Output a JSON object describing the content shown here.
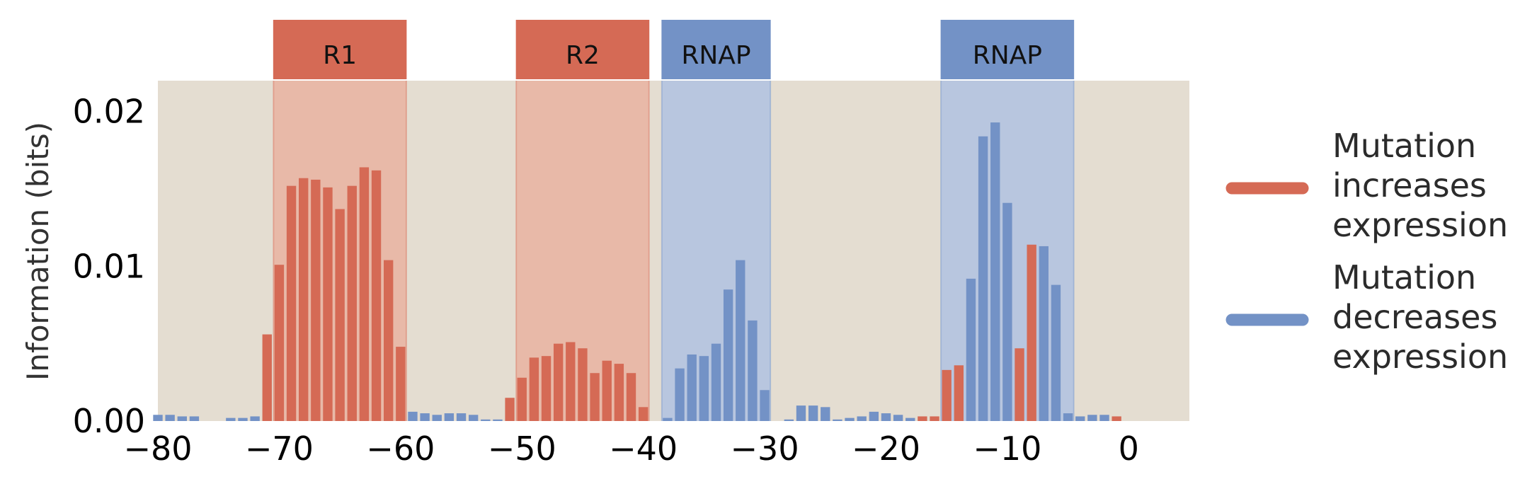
{
  "chart_data": {
    "type": "bar",
    "ylabel": "Information (bits)",
    "xlim": [
      -80,
      5
    ],
    "ylim": [
      0,
      0.022
    ],
    "x_ticks": [
      -80,
      -70,
      -60,
      -50,
      -40,
      -30,
      -20,
      -10,
      0
    ],
    "x_tick_labels": [
      "−80",
      "−70",
      "−60",
      "−50",
      "−40",
      "−30",
      "−20",
      "−10",
      "0"
    ],
    "y_ticks": [
      0.0,
      0.01,
      0.02
    ],
    "y_tick_labels": [
      "0.00",
      "0.01",
      "0.02"
    ],
    "grid": false,
    "legend_position": "right",
    "colors": {
      "increase": "#d56a55",
      "decrease": "#7392c6",
      "background": "#e4ddd1",
      "increase_region": "#e8b9a8",
      "decrease_region": "#b8c6df"
    },
    "legend": [
      {
        "color_key": "increase",
        "lines": [
          "Mutation",
          "increases",
          "expression"
        ]
      },
      {
        "color_key": "decrease",
        "lines": [
          "Mutation",
          "decreases",
          "expression"
        ]
      }
    ],
    "regions": [
      {
        "label": "R1",
        "start": -70,
        "end": -60,
        "color_key": "increase"
      },
      {
        "label": "R2",
        "start": -50,
        "end": -40,
        "color_key": "increase"
      },
      {
        "label": "RNAP",
        "start": -38,
        "end": -30,
        "color_key": "decrease"
      },
      {
        "label": "RNAP",
        "start": -15,
        "end": -5,
        "color_key": "decrease"
      }
    ],
    "bars": [
      {
        "x": -80,
        "value": 0.0004,
        "effect": "decrease"
      },
      {
        "x": -79,
        "value": 0.0004,
        "effect": "decrease"
      },
      {
        "x": -78,
        "value": 0.0003,
        "effect": "decrease"
      },
      {
        "x": -77,
        "value": 0.0003,
        "effect": "decrease"
      },
      {
        "x": -74,
        "value": 0.0002,
        "effect": "decrease"
      },
      {
        "x": -73,
        "value": 0.0002,
        "effect": "decrease"
      },
      {
        "x": -72,
        "value": 0.0003,
        "effect": "decrease"
      },
      {
        "x": -71,
        "value": 0.0056,
        "effect": "increase"
      },
      {
        "x": -70,
        "value": 0.0101,
        "effect": "increase"
      },
      {
        "x": -69,
        "value": 0.0152,
        "effect": "increase"
      },
      {
        "x": -68,
        "value": 0.0157,
        "effect": "increase"
      },
      {
        "x": -67,
        "value": 0.0156,
        "effect": "increase"
      },
      {
        "x": -66,
        "value": 0.0151,
        "effect": "increase"
      },
      {
        "x": -65,
        "value": 0.0137,
        "effect": "increase"
      },
      {
        "x": -64,
        "value": 0.0152,
        "effect": "increase"
      },
      {
        "x": -63,
        "value": 0.0164,
        "effect": "increase"
      },
      {
        "x": -62,
        "value": 0.0162,
        "effect": "increase"
      },
      {
        "x": -61,
        "value": 0.0104,
        "effect": "increase"
      },
      {
        "x": -60,
        "value": 0.0048,
        "effect": "increase"
      },
      {
        "x": -59,
        "value": 0.0006,
        "effect": "decrease"
      },
      {
        "x": -58,
        "value": 0.0005,
        "effect": "decrease"
      },
      {
        "x": -57,
        "value": 0.0004,
        "effect": "decrease"
      },
      {
        "x": -56,
        "value": 0.0005,
        "effect": "decrease"
      },
      {
        "x": -55,
        "value": 0.0005,
        "effect": "decrease"
      },
      {
        "x": -54,
        "value": 0.0004,
        "effect": "decrease"
      },
      {
        "x": -53,
        "value": 0.0001,
        "effect": "decrease"
      },
      {
        "x": -52,
        "value": 0.0001,
        "effect": "decrease"
      },
      {
        "x": -51,
        "value": 0.0015,
        "effect": "increase"
      },
      {
        "x": -50,
        "value": 0.0028,
        "effect": "increase"
      },
      {
        "x": -49,
        "value": 0.0041,
        "effect": "increase"
      },
      {
        "x": -48,
        "value": 0.0042,
        "effect": "increase"
      },
      {
        "x": -47,
        "value": 0.005,
        "effect": "increase"
      },
      {
        "x": -46,
        "value": 0.0051,
        "effect": "increase"
      },
      {
        "x": -45,
        "value": 0.0047,
        "effect": "increase"
      },
      {
        "x": -44,
        "value": 0.0031,
        "effect": "increase"
      },
      {
        "x": -43,
        "value": 0.0039,
        "effect": "increase"
      },
      {
        "x": -42,
        "value": 0.0037,
        "effect": "increase"
      },
      {
        "x": -41,
        "value": 0.0031,
        "effect": "increase"
      },
      {
        "x": -40,
        "value": 0.0009,
        "effect": "increase"
      },
      {
        "x": -38,
        "value": 0.0002,
        "effect": "decrease"
      },
      {
        "x": -37,
        "value": 0.0034,
        "effect": "decrease"
      },
      {
        "x": -36,
        "value": 0.0043,
        "effect": "decrease"
      },
      {
        "x": -35,
        "value": 0.0042,
        "effect": "decrease"
      },
      {
        "x": -34,
        "value": 0.005,
        "effect": "decrease"
      },
      {
        "x": -33,
        "value": 0.0085,
        "effect": "decrease"
      },
      {
        "x": -32,
        "value": 0.0104,
        "effect": "decrease"
      },
      {
        "x": -31,
        "value": 0.0065,
        "effect": "decrease"
      },
      {
        "x": -30,
        "value": 0.002,
        "effect": "decrease"
      },
      {
        "x": -28,
        "value": 0.0001,
        "effect": "decrease"
      },
      {
        "x": -27,
        "value": 0.001,
        "effect": "decrease"
      },
      {
        "x": -26,
        "value": 0.001,
        "effect": "decrease"
      },
      {
        "x": -25,
        "value": 0.0009,
        "effect": "decrease"
      },
      {
        "x": -24,
        "value": 0.0001,
        "effect": "decrease"
      },
      {
        "x": -23,
        "value": 0.0002,
        "effect": "decrease"
      },
      {
        "x": -22,
        "value": 0.0003,
        "effect": "decrease"
      },
      {
        "x": -21,
        "value": 0.0006,
        "effect": "decrease"
      },
      {
        "x": -20,
        "value": 0.0005,
        "effect": "decrease"
      },
      {
        "x": -19,
        "value": 0.0004,
        "effect": "decrease"
      },
      {
        "x": -18,
        "value": 0.0002,
        "effect": "decrease"
      },
      {
        "x": -17,
        "value": 0.0003,
        "effect": "increase"
      },
      {
        "x": -16,
        "value": 0.0003,
        "effect": "increase"
      },
      {
        "x": -15,
        "value": 0.0033,
        "effect": "increase"
      },
      {
        "x": -14,
        "value": 0.0036,
        "effect": "increase"
      },
      {
        "x": -13,
        "value": 0.0092,
        "effect": "decrease"
      },
      {
        "x": -12,
        "value": 0.0184,
        "effect": "decrease"
      },
      {
        "x": -11,
        "value": 0.0193,
        "effect": "decrease"
      },
      {
        "x": -10,
        "value": 0.0141,
        "effect": "decrease"
      },
      {
        "x": -9,
        "value": 0.0047,
        "effect": "increase"
      },
      {
        "x": -8,
        "value": 0.0114,
        "effect": "increase"
      },
      {
        "x": -7,
        "value": 0.0113,
        "effect": "decrease"
      },
      {
        "x": -6,
        "value": 0.0088,
        "effect": "decrease"
      },
      {
        "x": -5,
        "value": 0.0005,
        "effect": "decrease"
      },
      {
        "x": -4,
        "value": 0.0003,
        "effect": "decrease"
      },
      {
        "x": -3,
        "value": 0.0004,
        "effect": "decrease"
      },
      {
        "x": -2,
        "value": 0.0004,
        "effect": "decrease"
      },
      {
        "x": -1,
        "value": 0.0003,
        "effect": "increase"
      }
    ]
  }
}
